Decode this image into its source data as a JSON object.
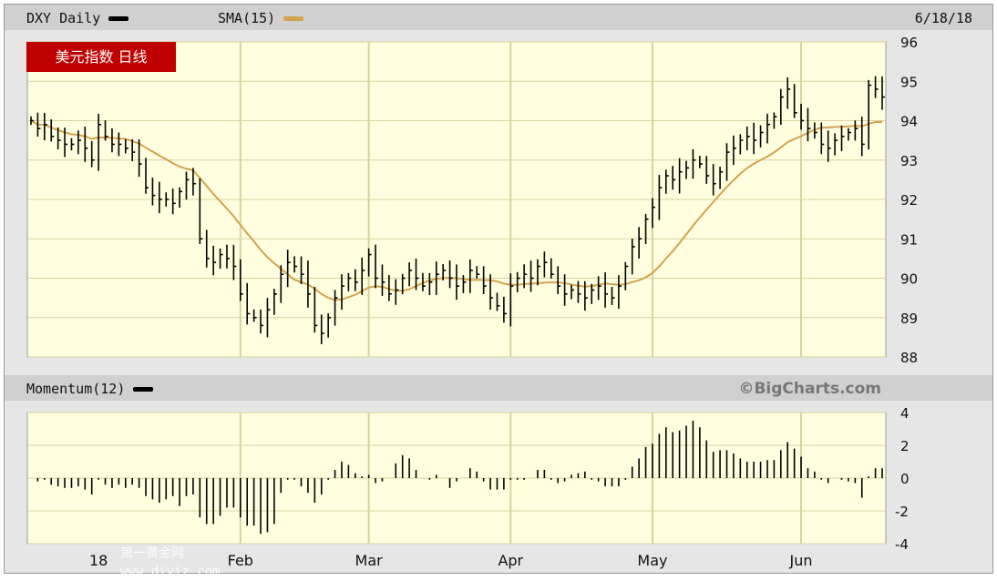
{
  "header": {
    "symbol_label": "DXY Daily",
    "sma_label": "SMA(15)",
    "date": "6/18/18",
    "badge": "美元指数 日线"
  },
  "momentum_header": {
    "label": "Momentum(12)",
    "copyright": "©BigCharts.com"
  },
  "watermark": {
    "line1": "第一黄金网",
    "line2": "www.diyiz.com"
  },
  "colors": {
    "price": "#000000",
    "sma": "#d4a24c",
    "plot_bg": "#ffffe0",
    "grid": "#d8d2a0",
    "badge": "#c00000"
  },
  "chart_data": [
    {
      "type": "ohlc-bar",
      "title": "DXY Daily",
      "overlay": "SMA(15)",
      "ylim": [
        88,
        96
      ],
      "yticks": [
        "88",
        "89",
        "90",
        "91",
        "92",
        "93",
        "94",
        "95",
        "96"
      ],
      "month_labels": [
        {
          "label": "18",
          "index": 10
        },
        {
          "label": "Feb",
          "index": 31
        },
        {
          "label": "Mar",
          "index": 50
        },
        {
          "label": "Apr",
          "index": 71
        },
        {
          "label": "May",
          "index": 92
        },
        {
          "label": "Jun",
          "index": 114
        }
      ],
      "close": [
        94.0,
        93.8,
        93.9,
        93.6,
        93.5,
        93.4,
        93.4,
        93.5,
        93.3,
        93.0,
        93.9,
        93.6,
        93.4,
        93.4,
        93.3,
        93.2,
        92.9,
        92.3,
        92.1,
        92.0,
        92.0,
        91.9,
        92.2,
        92.5,
        92.4,
        91.0,
        90.5,
        90.4,
        90.6,
        90.5,
        90.3,
        89.6,
        89.1,
        89.0,
        88.8,
        89.2,
        89.6,
        90.1,
        90.4,
        90.3,
        90.1,
        89.6,
        88.8,
        88.6,
        89.0,
        89.5,
        89.8,
        90.0,
        89.9,
        90.2,
        90.6,
        90.0,
        89.9,
        89.6,
        89.7,
        90.0,
        90.2,
        90.0,
        89.8,
        89.9,
        90.1,
        90.2,
        90.0,
        89.8,
        89.9,
        90.2,
        90.1,
        89.8,
        89.5,
        89.3,
        89.1,
        89.8,
        90.0,
        90.1,
        90.0,
        90.3,
        90.4,
        90.1,
        89.8,
        89.6,
        89.7,
        89.6,
        89.5,
        89.7,
        89.8,
        89.6,
        89.5,
        89.8,
        90.3,
        90.8,
        91.0,
        91.5,
        91.8,
        92.3,
        92.6,
        92.5,
        92.7,
        92.8,
        93.0,
        92.9,
        92.6,
        92.4,
        92.7,
        93.2,
        93.3,
        93.5,
        93.6,
        93.5,
        93.7,
        93.9,
        94.1,
        94.6,
        94.8,
        94.2,
        94.0,
        93.8,
        93.7,
        93.4,
        93.3,
        93.5,
        93.6,
        93.7,
        93.8,
        93.4,
        94.9,
        94.8,
        94.6
      ]
    },
    {
      "type": "bar",
      "title": "Momentum(12)",
      "ylim": [
        -4,
        4
      ],
      "yticks": [
        "-4",
        "-2",
        "0",
        "2",
        "4"
      ]
    }
  ]
}
